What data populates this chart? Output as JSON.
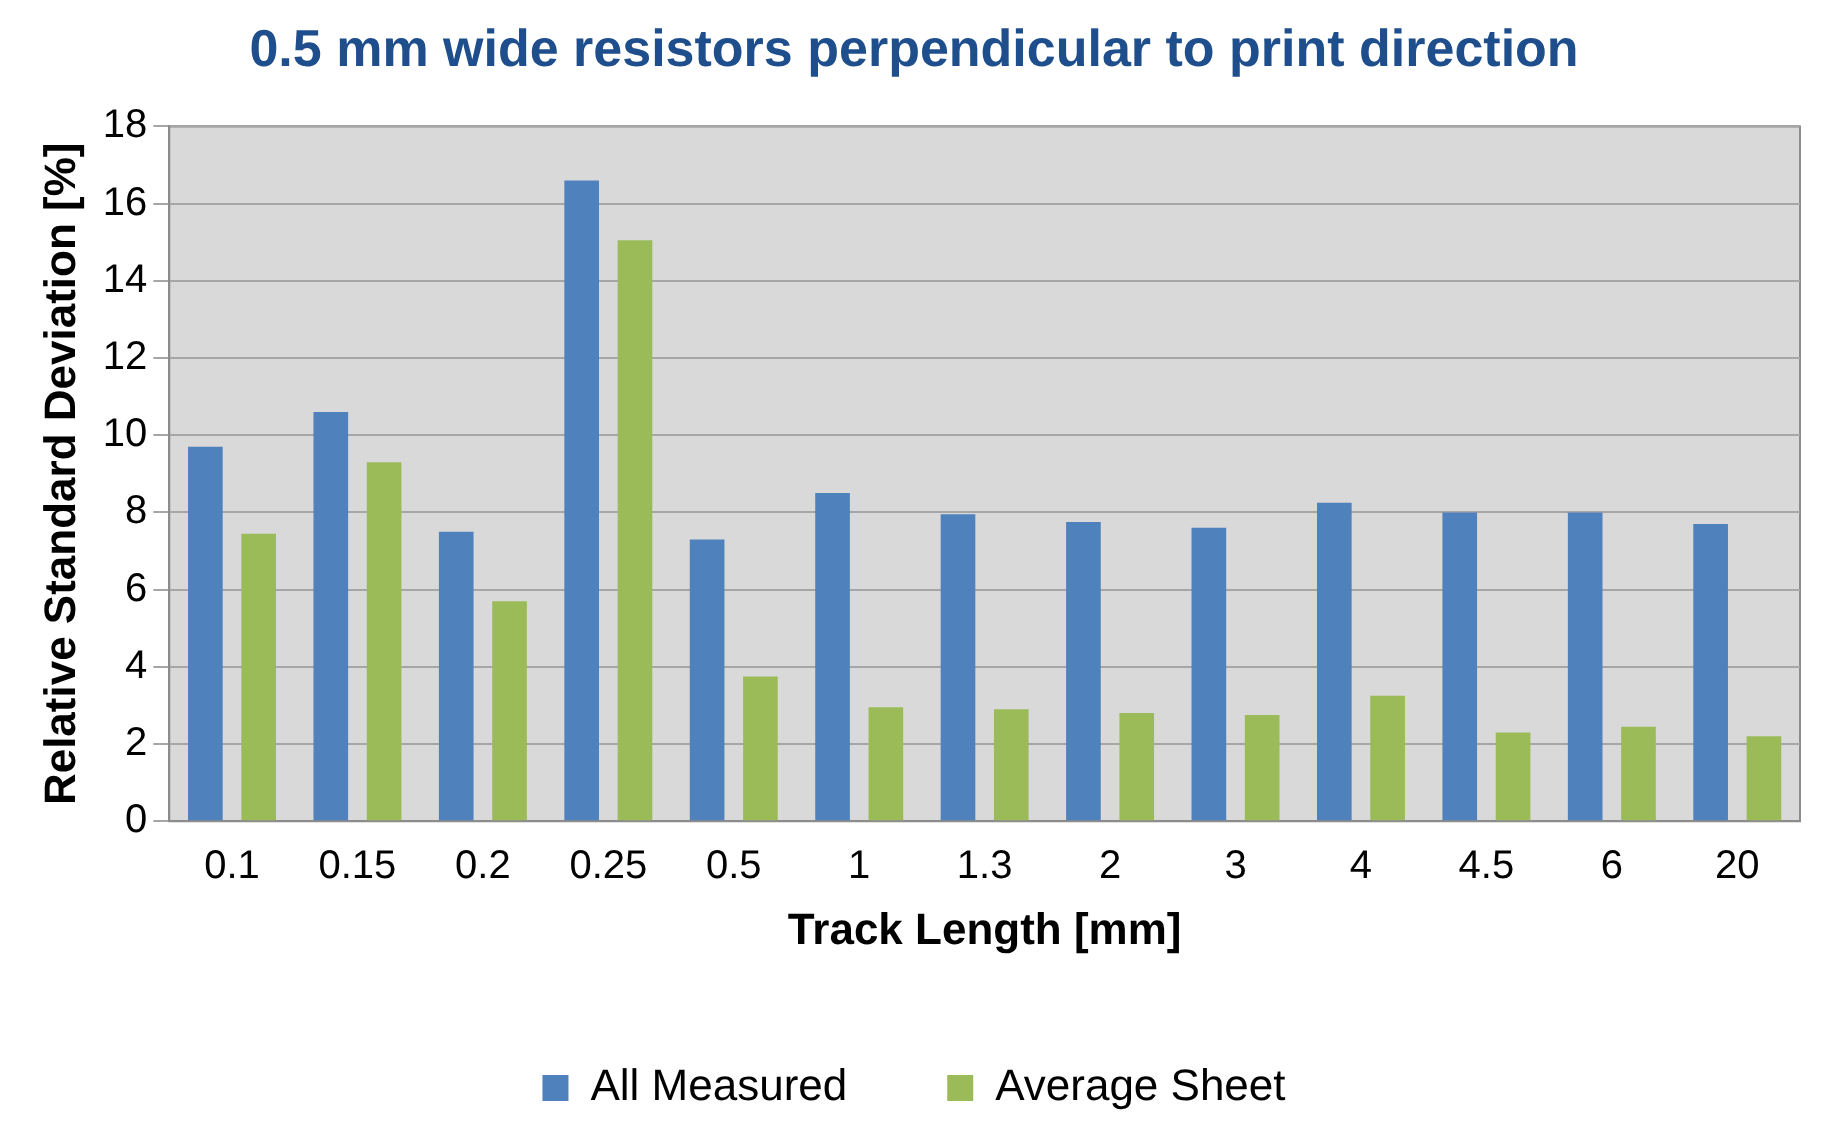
{
  "chart_data": {
    "type": "bar",
    "title": "0.5 mm wide resistors perpendicular to print direction",
    "xlabel": "Track Length [mm]",
    "ylabel": "Relative Standard Deviation [%]",
    "categories": [
      "0.1",
      "0.15",
      "0.2",
      "0.25",
      "0.5",
      "1",
      "1.3",
      "2",
      "3",
      "4",
      "4.5",
      "6",
      "20"
    ],
    "series": [
      {
        "name": "All Measured",
        "color": "#4f81bd",
        "values": [
          9.7,
          10.6,
          7.5,
          16.6,
          7.3,
          8.5,
          7.95,
          7.75,
          7.6,
          8.25,
          8.0,
          8.0,
          7.7
        ]
      },
      {
        "name": "Average Sheet",
        "color": "#9bbb59",
        "values": [
          7.45,
          9.3,
          5.7,
          15.05,
          3.75,
          2.95,
          2.9,
          2.8,
          2.75,
          3.25,
          2.3,
          2.45,
          2.2
        ]
      }
    ],
    "ylim": [
      0,
      18
    ],
    "yticks": [
      0,
      2,
      4,
      6,
      8,
      10,
      12,
      14,
      16,
      18
    ],
    "grid": "y",
    "legend": "bottom"
  }
}
